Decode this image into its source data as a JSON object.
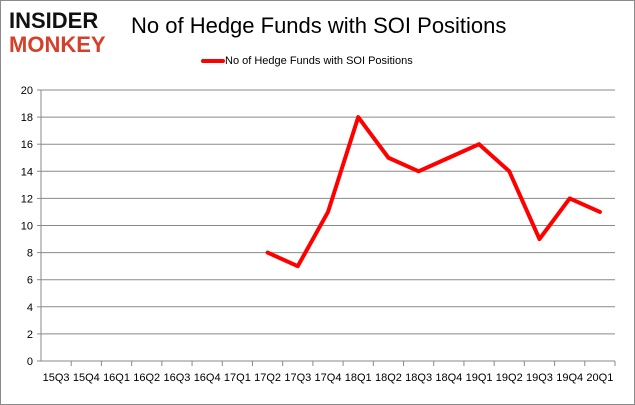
{
  "logo": {
    "line1": "INSIDER",
    "line2": "MONKEY",
    "colors": {
      "line1": "#111111",
      "line2": "#d6402b"
    }
  },
  "chart_data": {
    "type": "line",
    "title": "No of Hedge Funds with SOI Positions",
    "xlabel": "",
    "ylabel": "",
    "categories": [
      "15Q3",
      "15Q4",
      "16Q1",
      "16Q2",
      "16Q3",
      "16Q4",
      "17Q1",
      "17Q2",
      "17Q3",
      "17Q4",
      "18Q1",
      "18Q2",
      "18Q3",
      "18Q4",
      "19Q1",
      "19Q2",
      "19Q3",
      "19Q4",
      "20Q1"
    ],
    "series": [
      {
        "name": "No of Hedge Funds with SOI Positions",
        "color": "#ff0000",
        "values": [
          null,
          null,
          null,
          null,
          null,
          null,
          null,
          8,
          7,
          11,
          18,
          15,
          14,
          15,
          16,
          14,
          9,
          12,
          11
        ]
      }
    ],
    "ylim": [
      0,
      20
    ],
    "yticks": [
      0,
      2,
      4,
      6,
      8,
      10,
      12,
      14,
      16,
      18,
      20
    ],
    "grid": true,
    "legend": "top-center"
  }
}
